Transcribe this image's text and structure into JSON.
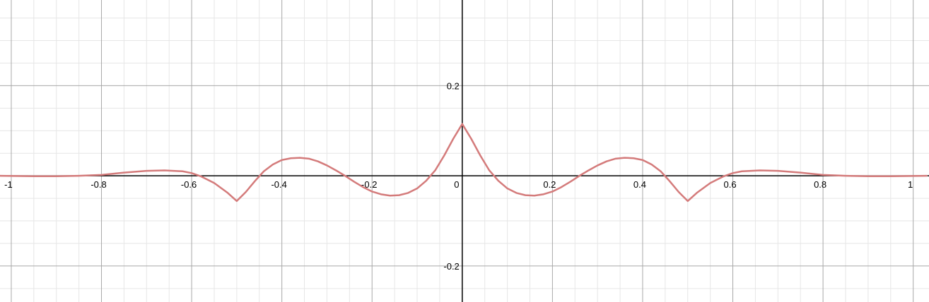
{
  "chart_data": {
    "type": "line",
    "title": "",
    "xlabel": "",
    "ylabel": "",
    "xlim": [
      -1.025,
      1.035
    ],
    "ylim": [
      -0.28,
      0.39
    ],
    "grid": true,
    "legend": "none",
    "x_ticks": [
      {
        "value": -1,
        "label": "-1"
      },
      {
        "value": -0.8,
        "label": "-0.8"
      },
      {
        "value": -0.6,
        "label": "-0.6"
      },
      {
        "value": -0.4,
        "label": "-0.4"
      },
      {
        "value": -0.2,
        "label": "-0.2"
      },
      {
        "value": 0,
        "label": "0"
      },
      {
        "value": 0.2,
        "label": "0.2"
      },
      {
        "value": 0.4,
        "label": "0.4"
      },
      {
        "value": 0.6,
        "label": "0.6"
      },
      {
        "value": 0.8,
        "label": "0.8"
      },
      {
        "value": 1,
        "label": "1"
      }
    ],
    "y_ticks": [
      {
        "value": 0.2,
        "label": "0.2"
      },
      {
        "value": -0.2,
        "label": "-0.2"
      }
    ],
    "series": [
      {
        "color": "#d47b7b",
        "x": [
          -1.03,
          -0.95,
          -0.9,
          -0.85,
          -0.8,
          -0.75,
          -0.7,
          -0.66,
          -0.62,
          -0.6,
          -0.58,
          -0.55,
          -0.52,
          -0.5,
          -0.48,
          -0.46,
          -0.44,
          -0.42,
          -0.4,
          -0.38,
          -0.36,
          -0.34,
          -0.32,
          -0.3,
          -0.28,
          -0.26,
          -0.24,
          -0.22,
          -0.2,
          -0.18,
          -0.16,
          -0.14,
          -0.12,
          -0.1,
          -0.08,
          -0.06,
          -0.04,
          -0.02,
          0,
          0.02,
          0.04,
          0.06,
          0.08,
          0.1,
          0.12,
          0.14,
          0.16,
          0.18,
          0.2,
          0.22,
          0.24,
          0.26,
          0.28,
          0.3,
          0.32,
          0.34,
          0.36,
          0.38,
          0.4,
          0.42,
          0.44,
          0.46,
          0.48,
          0.5,
          0.52,
          0.55,
          0.58,
          0.6,
          0.62,
          0.66,
          0.7,
          0.75,
          0.8,
          0.85,
          0.9,
          0.95,
          1.03
        ],
        "y": [
          0,
          -0.001,
          -0.001,
          0,
          0.002,
          0.007,
          0.011,
          0.012,
          0.01,
          0.006,
          -0.001,
          -0.016,
          -0.038,
          -0.056,
          -0.036,
          -0.012,
          0.01,
          0.025,
          0.035,
          0.039,
          0.04,
          0.038,
          0.032,
          0.023,
          0.012,
          0,
          -0.013,
          -0.025,
          -0.035,
          -0.041,
          -0.044,
          -0.043,
          -0.038,
          -0.028,
          -0.011,
          0.012,
          0.045,
          0.082,
          0.115,
          0.082,
          0.045,
          0.012,
          -0.011,
          -0.028,
          -0.038,
          -0.043,
          -0.044,
          -0.041,
          -0.035,
          -0.025,
          -0.013,
          0,
          0.012,
          0.023,
          0.032,
          0.038,
          0.04,
          0.039,
          0.035,
          0.025,
          0.01,
          -0.012,
          -0.036,
          -0.056,
          -0.038,
          -0.016,
          -0.001,
          0.006,
          0.01,
          0.012,
          0.011,
          0.007,
          0.002,
          0,
          -0.001,
          -0.001,
          0
        ]
      }
    ]
  }
}
